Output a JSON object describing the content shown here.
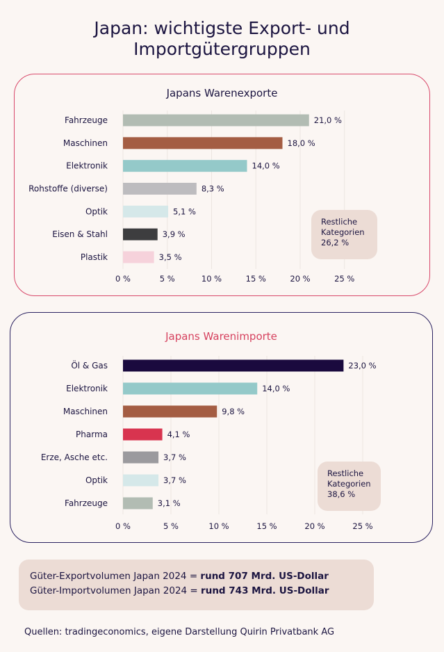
{
  "title": "Japan: wichtigste Export- und Importgütergruppen",
  "chart_data": [
    {
      "type": "bar",
      "orientation": "horizontal",
      "title": "Japans Warenexporte",
      "categories": [
        "Fahrzeuge",
        "Maschinen",
        "Elektronik",
        "Rohstoffe (diverse)",
        "Optik",
        "Eisen & Stahl",
        "Plastik"
      ],
      "values": [
        21.0,
        18.0,
        14.0,
        8.3,
        5.1,
        3.9,
        3.5
      ],
      "value_labels": [
        "21,0 %",
        "18,0 %",
        "14,0 %",
        "8,3 %",
        "5,1 %",
        "3,9 %",
        "3,5 %"
      ],
      "colors": [
        "#b2bcb3",
        "#a45d43",
        "#94c9c9",
        "#bdbcbf",
        "#d5e8e9",
        "#3d3d3f",
        "#f6d2db"
      ],
      "xlim": [
        0,
        25
      ],
      "xticks": [
        0,
        5,
        10,
        15,
        20,
        25
      ],
      "xtick_labels": [
        "0 %",
        "5 %",
        "10 %",
        "15 %",
        "20 %",
        "25 %"
      ],
      "grid": true,
      "annotation": [
        "Restliche",
        "Kategorien",
        "26,2 %"
      ]
    },
    {
      "type": "bar",
      "orientation": "horizontal",
      "title": "Japans Warenimporte",
      "categories": [
        "Öl & Gas",
        "Elektronik",
        "Maschinen",
        "Pharma",
        "Erze, Asche etc.",
        "Optik",
        "Fahrzeuge"
      ],
      "values": [
        23.0,
        14.0,
        9.8,
        4.1,
        3.7,
        3.7,
        3.1
      ],
      "value_labels": [
        "23,0 %",
        "14,0 %",
        "9,8 %",
        "4,1 %",
        "3,7 %",
        "3,7 %",
        "3,1 %"
      ],
      "colors": [
        "#1a0a3e",
        "#94c9c9",
        "#a45d43",
        "#d8344f",
        "#9b9a9e",
        "#d5e8e9",
        "#b2bcb3"
      ],
      "xlim": [
        0,
        25
      ],
      "xticks": [
        0,
        5,
        10,
        15,
        20,
        25
      ],
      "xtick_labels": [
        "0 %",
        "5 %",
        "10 %",
        "15 %",
        "20 %",
        "25 %"
      ],
      "grid": true,
      "annotation": [
        "Restliche",
        "Kategorien",
        "38,6 %"
      ]
    }
  ],
  "summary": {
    "export_prefix": "Güter-Exportvolumen Japan 2024 = ",
    "export_value": "rund 707 Mrd. US-Dollar",
    "import_prefix": "Güter-Importvolumen Japan 2024 = ",
    "import_value": "rund 743 Mrd. US-Dollar"
  },
  "source": "Quellen: tradingeconomics, eigene Darstellung Quirin Privatbank AG"
}
